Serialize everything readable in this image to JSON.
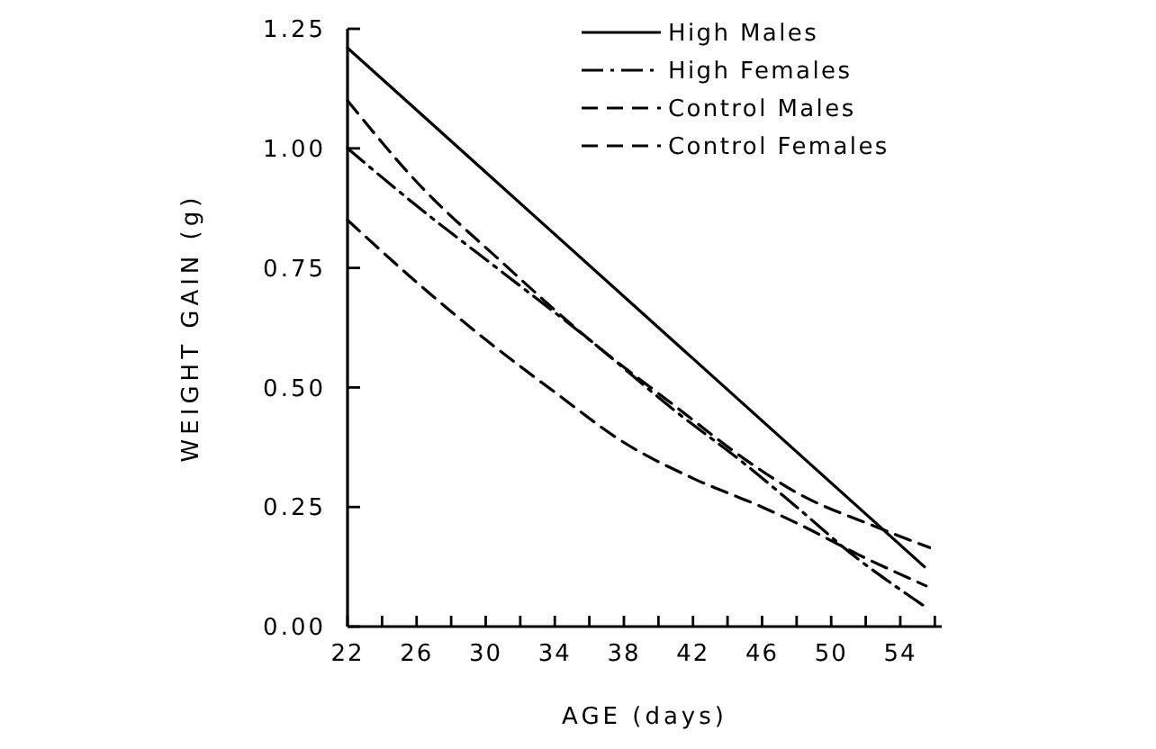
{
  "chart_data": {
    "type": "line",
    "xlabel": "AGE (days)",
    "ylabel": "WEIGHT GAIN (g)",
    "xlim": [
      22,
      56.4
    ],
    "xticks": [
      22,
      {
        "value": 24,
        "label": null
      },
      26,
      {
        "value": 28,
        "label": null
      },
      30,
      {
        "value": 32,
        "label": null
      },
      34,
      {
        "value": 36,
        "label": null
      },
      38,
      {
        "value": 40,
        "label": null
      },
      42,
      {
        "value": 44,
        "label": null
      },
      46,
      {
        "value": 48,
        "label": null
      },
      50,
      {
        "value": 52,
        "label": null
      },
      54,
      {
        "value": 56,
        "label": null
      }
    ],
    "ylim": [
      0,
      1.25
    ],
    "yticks": [
      {
        "value": 0,
        "label": "0.00"
      },
      {
        "value": 0.25,
        "label": "0.25"
      },
      {
        "value": 0.5,
        "label": "0.50"
      },
      {
        "value": 0.75,
        "label": "0.75"
      },
      {
        "value": 1,
        "label": "1.00"
      },
      {
        "value": 1.25,
        "label": "1.25"
      }
    ],
    "legend": "top right",
    "grid": false,
    "marker": "none",
    "series": [
      {
        "name": "High Males",
        "color": "#000000",
        "line_style": "solid",
        "x": [
          22,
          55.4
        ],
        "values": [
          1.21,
          0.125
        ]
      },
      {
        "name": "High Females",
        "color": "#000000",
        "line_style": "dashdot",
        "x": [
          22,
          26,
          31,
          36,
          41,
          45,
          48,
          51.6,
          53.5,
          55.5
        ],
        "values": [
          1.0,
          0.88,
          0.74,
          0.6,
          0.45,
          0.34,
          0.25,
          0.14,
          0.09,
          0.04
        ]
      },
      {
        "name": "Control Males",
        "color": "#000000",
        "line_style": "dashed",
        "x": [
          22,
          26,
          31,
          36,
          41,
          45,
          48,
          52.5,
          55.7
        ],
        "values": [
          1.1,
          0.93,
          0.76,
          0.6,
          0.46,
          0.35,
          0.28,
          0.21,
          0.165
        ]
      },
      {
        "name": "Control Females",
        "color": "#000000",
        "line_style": "dashed",
        "x": [
          22,
          26,
          30,
          34,
          38,
          42,
          46,
          48.2,
          51.6,
          55.5
        ],
        "values": [
          0.85,
          0.72,
          0.6,
          0.49,
          0.385,
          0.31,
          0.25,
          0.213,
          0.15,
          0.085
        ]
      }
    ]
  }
}
